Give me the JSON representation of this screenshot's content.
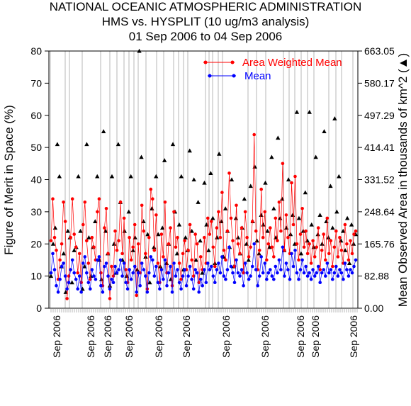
{
  "chart_data": {
    "type": "scatter",
    "title_lines": [
      "NATIONAL OCEANIC ATMOSPHERIC ADMINISTRATION",
      "HMS vs. HYSPLIT (10 ug/m3 analysis)",
      "01 Sep 2006 to 04 Sep 2006"
    ],
    "ylabel_left": "Figure of Merit in Space (%)",
    "ylabel_right": "Mean Observed Area in thousands of km^2 (▲)",
    "ylim_left": [
      0,
      80
    ],
    "left_ticks": [
      "0",
      "10",
      "20",
      "30",
      "40",
      "50",
      "60",
      "70",
      "80"
    ],
    "right_ticks": [
      "0.00",
      "82.88",
      "165.76",
      "248.64",
      "331.52",
      "414.41",
      "497.29",
      "580.17",
      "663.05"
    ],
    "xtick_label": "Sep 2006",
    "legend_position": "top-right",
    "colors": {
      "area_weighted": "#ff0000",
      "mean": "#0000ff",
      "observed": "#000000",
      "gridline": "#999999"
    },
    "series": [
      {
        "name": "Area Weighted Mean",
        "marker": "circle",
        "values": [
          21,
          34,
          22,
          18,
          9,
          15,
          20,
          33,
          27,
          3,
          10,
          22,
          34,
          23,
          19,
          11,
          17,
          8,
          26,
          33,
          21,
          14,
          9,
          22,
          19,
          15,
          30,
          34,
          11,
          7,
          25,
          31,
          17,
          3,
          13,
          10,
          24,
          18,
          21,
          33,
          17,
          28,
          12,
          8,
          22,
          15,
          19,
          26,
          4,
          20,
          11,
          32,
          24,
          17,
          6,
          22,
          37,
          34,
          18,
          29,
          14,
          8,
          23,
          16,
          33,
          11,
          20,
          25,
          7,
          30,
          19,
          22,
          14,
          9,
          17,
          21,
          12,
          18,
          26,
          15,
          10,
          23,
          20,
          8,
          16,
          12,
          22,
          14,
          28,
          23,
          27,
          19,
          13,
          25,
          30,
          22,
          36,
          18,
          15,
          24,
          42,
          28,
          21,
          13,
          32,
          20,
          17,
          25,
          11,
          30,
          22,
          16,
          19,
          27,
          54,
          24,
          12,
          18,
          37,
          22,
          30,
          15,
          20,
          25,
          19,
          16,
          28,
          21,
          33,
          24,
          45,
          18,
          29,
          22,
          17,
          39,
          26,
          41,
          20,
          15,
          23,
          31,
          19,
          24,
          17,
          20,
          14,
          21,
          16,
          19,
          25,
          12,
          18,
          23,
          15,
          28,
          17,
          21,
          13,
          19,
          24,
          16,
          22,
          18,
          14,
          26,
          20,
          15,
          21,
          17,
          23,
          24
        ]
      },
      {
        "name": "Mean",
        "marker": "circle",
        "values": [
          11,
          17,
          12,
          7,
          5,
          9,
          13,
          14,
          10,
          6,
          8,
          12,
          15,
          11,
          9,
          6,
          10,
          5,
          14,
          16,
          11,
          8,
          6,
          12,
          10,
          9,
          15,
          16,
          7,
          5,
          13,
          14,
          10,
          6,
          9,
          8,
          13,
          11,
          12,
          15,
          10,
          14,
          8,
          6,
          12,
          9,
          11,
          13,
          5,
          11,
          7,
          14,
          12,
          10,
          5,
          11,
          16,
          15,
          10,
          13,
          8,
          6,
          12,
          9,
          15,
          7,
          11,
          13,
          5,
          14,
          10,
          12,
          8,
          6,
          10,
          12,
          7,
          10,
          13,
          9,
          6,
          12,
          11,
          5,
          9,
          7,
          12,
          8,
          14,
          12,
          13,
          10,
          8,
          12,
          14,
          11,
          16,
          10,
          9,
          12,
          19,
          13,
          11,
          8,
          15,
          11,
          10,
          12,
          7,
          14,
          11,
          9,
          10,
          13,
          20,
          12,
          7,
          10,
          16,
          11,
          14,
          9,
          11,
          12,
          10,
          9,
          13,
          11,
          15,
          12,
          19,
          10,
          14,
          12,
          9,
          17,
          13,
          18,
          11,
          9,
          12,
          15,
          11,
          13,
          10,
          11,
          9,
          12,
          10,
          11,
          13,
          8,
          11,
          12,
          10,
          14,
          11,
          12,
          9,
          11,
          13,
          10,
          12,
          11,
          9,
          14,
          12,
          10,
          12,
          11,
          13,
          15
        ]
      },
      {
        "name": "Mean Observed Area",
        "marker": "triangle",
        "axis": "right",
        "values": [
          10,
          20,
          25,
          51,
          41,
          13,
          17,
          5,
          24,
          22,
          8,
          18,
          19,
          41,
          24,
          6,
          13,
          51,
          22,
          10,
          19,
          27,
          41,
          15,
          9,
          55,
          24,
          17,
          7,
          41,
          20,
          11,
          51,
          33,
          15,
          24,
          10,
          30,
          41,
          18,
          22,
          12,
          80,
          47,
          27,
          16,
          23,
          8,
          31,
          19,
          41,
          23,
          13,
          25,
          46,
          14,
          20,
          9,
          51,
          30,
          17,
          26,
          41,
          12,
          22,
          18,
          49,
          24,
          40,
          15,
          33,
          21,
          11,
          39,
          26,
          18,
          42,
          28,
          14,
          22,
          48,
          27,
          16,
          31,
          24,
          19,
          40,
          13,
          28,
          22,
          17,
          25,
          34,
          20,
          15,
          38,
          27,
          44,
          21,
          17,
          29,
          26,
          39,
          24,
          19,
          47,
          31,
          22,
          53,
          28,
          34,
          18,
          25,
          40,
          23,
          29,
          20,
          61,
          28,
          17,
          24,
          36,
          21,
          61,
          26,
          19,
          47,
          23,
          29,
          20,
          55,
          27,
          22,
          38,
          25,
          59,
          30,
          41,
          21,
          24,
          18,
          28,
          14,
          26,
          20,
          23
        ]
      }
    ]
  }
}
